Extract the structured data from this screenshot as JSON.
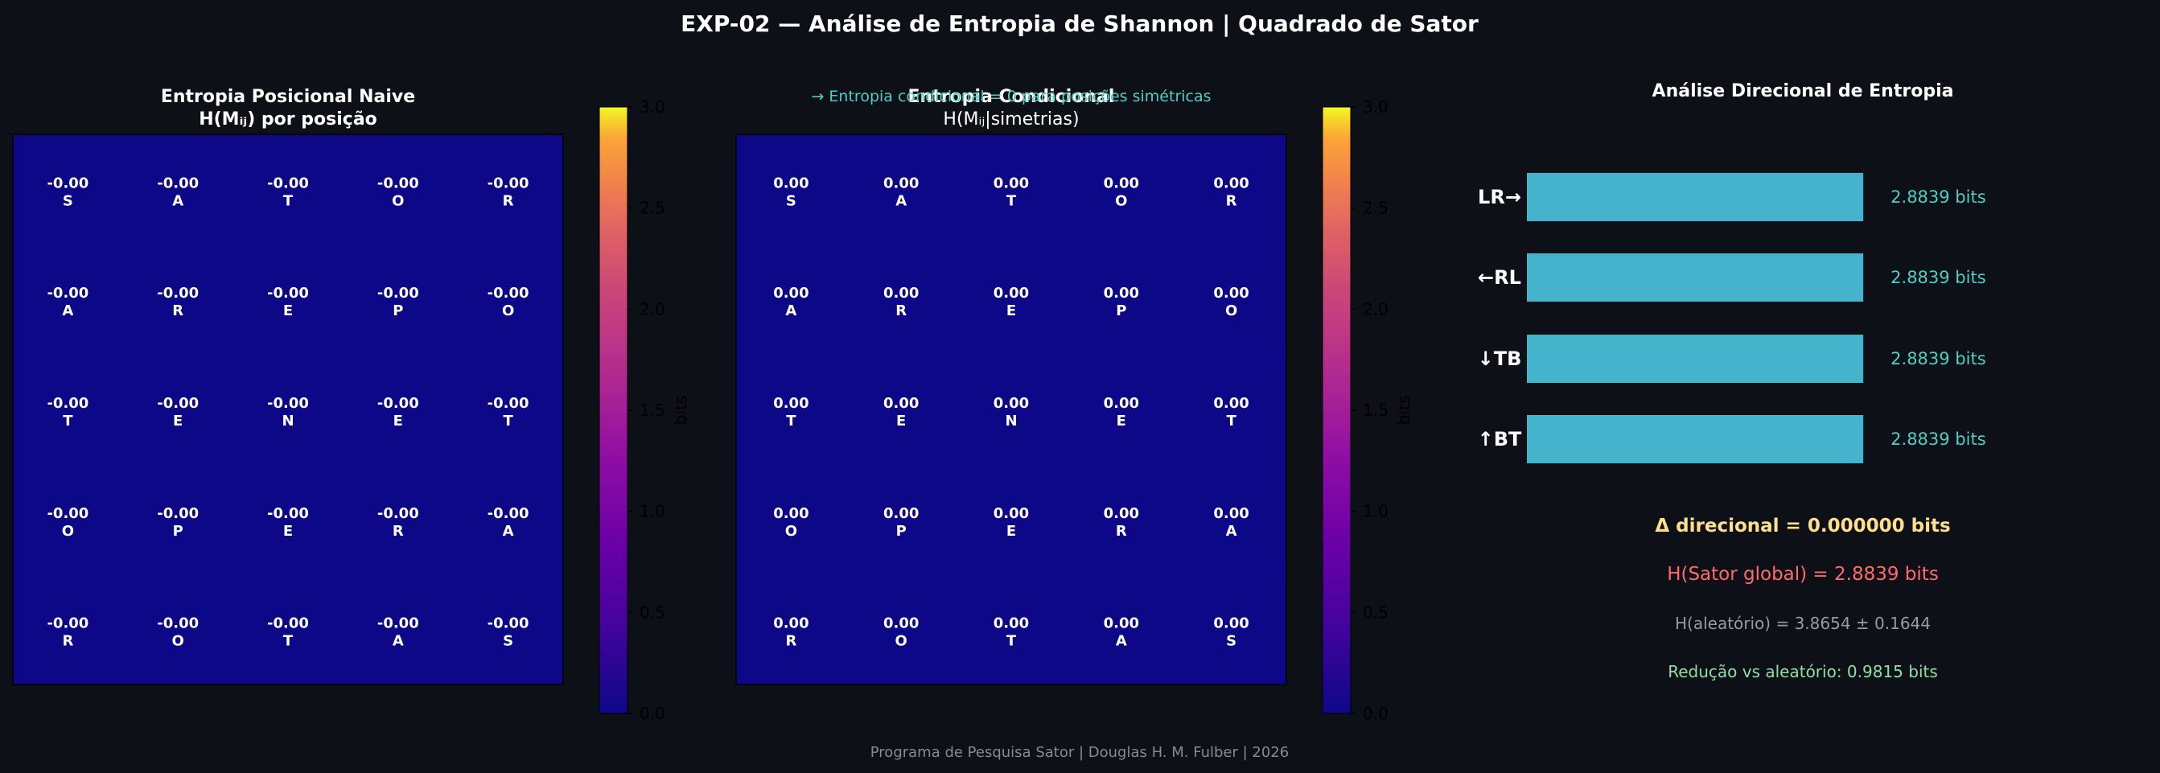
{
  "figure": {
    "suptitle": "EXP-02 — Análise de Entropia de Shannon | Quadrado de Sator",
    "footer": "Programa de Pesquisa Sator | Douglas H. M. Fulber | 2026"
  },
  "colors": {
    "background": "#0d1017",
    "heat_cell": "#0d0887",
    "bar": "#45b3cc",
    "bar_value": "#4ecdc4",
    "delta": "#ffe08a",
    "global": "#ff6b6b",
    "random": "#9a9a9a",
    "reduction": "#8fe0a0",
    "note": "#4ecdc4"
  },
  "chart_data": [
    {
      "type": "heatmap",
      "title_line1": "Entropia Posicional Naive",
      "title_line2": "H(Mᵢⱼ) por posição",
      "letters": [
        [
          "S",
          "A",
          "T",
          "O",
          "R"
        ],
        [
          "A",
          "R",
          "E",
          "P",
          "O"
        ],
        [
          "T",
          "E",
          "N",
          "E",
          "T"
        ],
        [
          "O",
          "P",
          "E",
          "R",
          "A"
        ],
        [
          "R",
          "O",
          "T",
          "A",
          "S"
        ]
      ],
      "values": [
        [
          -0.0,
          -0.0,
          -0.0,
          -0.0,
          -0.0
        ],
        [
          -0.0,
          -0.0,
          -0.0,
          -0.0,
          -0.0
        ],
        [
          -0.0,
          -0.0,
          -0.0,
          -0.0,
          -0.0
        ],
        [
          -0.0,
          -0.0,
          -0.0,
          -0.0,
          -0.0
        ],
        [
          -0.0,
          -0.0,
          -0.0,
          -0.0,
          -0.0
        ]
      ],
      "value_labels": [
        [
          "-0.00",
          "-0.00",
          "-0.00",
          "-0.00",
          "-0.00"
        ],
        [
          "-0.00",
          "-0.00",
          "-0.00",
          "-0.00",
          "-0.00"
        ],
        [
          "-0.00",
          "-0.00",
          "-0.00",
          "-0.00",
          "-0.00"
        ],
        [
          "-0.00",
          "-0.00",
          "-0.00",
          "-0.00",
          "-0.00"
        ],
        [
          "-0.00",
          "-0.00",
          "-0.00",
          "-0.00",
          "-0.00"
        ]
      ],
      "colorbar": {
        "label": "bits",
        "range": [
          0.0,
          3.0
        ],
        "ticks": [
          "0.0",
          "0.5",
          "1.0",
          "1.5",
          "2.0",
          "2.5",
          "3.0"
        ],
        "colormap": "plasma"
      }
    },
    {
      "type": "heatmap",
      "title_line1": "Entropia Condicional",
      "title_line2": "H(Mᵢⱼ|simetrias)",
      "note": "→ Entropia condicional = 0 para posições simétricas",
      "letters": [
        [
          "S",
          "A",
          "T",
          "O",
          "R"
        ],
        [
          "A",
          "R",
          "E",
          "P",
          "O"
        ],
        [
          "T",
          "E",
          "N",
          "E",
          "T"
        ],
        [
          "O",
          "P",
          "E",
          "R",
          "A"
        ],
        [
          "R",
          "O",
          "T",
          "A",
          "S"
        ]
      ],
      "values": [
        [
          0.0,
          0.0,
          0.0,
          0.0,
          0.0
        ],
        [
          0.0,
          0.0,
          0.0,
          0.0,
          0.0
        ],
        [
          0.0,
          0.0,
          0.0,
          0.0,
          0.0
        ],
        [
          0.0,
          0.0,
          0.0,
          0.0,
          0.0
        ],
        [
          0.0,
          0.0,
          0.0,
          0.0,
          0.0
        ]
      ],
      "value_labels": [
        [
          "0.00",
          "0.00",
          "0.00",
          "0.00",
          "0.00"
        ],
        [
          "0.00",
          "0.00",
          "0.00",
          "0.00",
          "0.00"
        ],
        [
          "0.00",
          "0.00",
          "0.00",
          "0.00",
          "0.00"
        ],
        [
          "0.00",
          "0.00",
          "0.00",
          "0.00",
          "0.00"
        ],
        [
          "0.00",
          "0.00",
          "0.00",
          "0.00",
          "0.00"
        ]
      ],
      "colorbar": {
        "label": "bits",
        "range": [
          0.0,
          3.0
        ],
        "ticks": [
          "0.0",
          "0.5",
          "1.0",
          "1.5",
          "2.0",
          "2.5",
          "3.0"
        ],
        "colormap": "plasma"
      }
    },
    {
      "type": "bar",
      "orientation": "horizontal",
      "title": "Análise Direcional de Entropia",
      "categories": [
        "LR→",
        "←RL",
        "↓TB",
        "↑BT"
      ],
      "values": [
        2.8839,
        2.8839,
        2.8839,
        2.8839
      ],
      "value_labels": [
        "2.8839 bits",
        "2.8839 bits",
        "2.8839 bits",
        "2.8839 bits"
      ],
      "annotations": [
        "Δ direcional = 0.000000 bits",
        "H(Sator global) = 2.8839 bits",
        "H(aleatório) = 3.8654 ± 0.1644",
        "Redução vs aleatório: 0.9815 bits"
      ]
    }
  ]
}
